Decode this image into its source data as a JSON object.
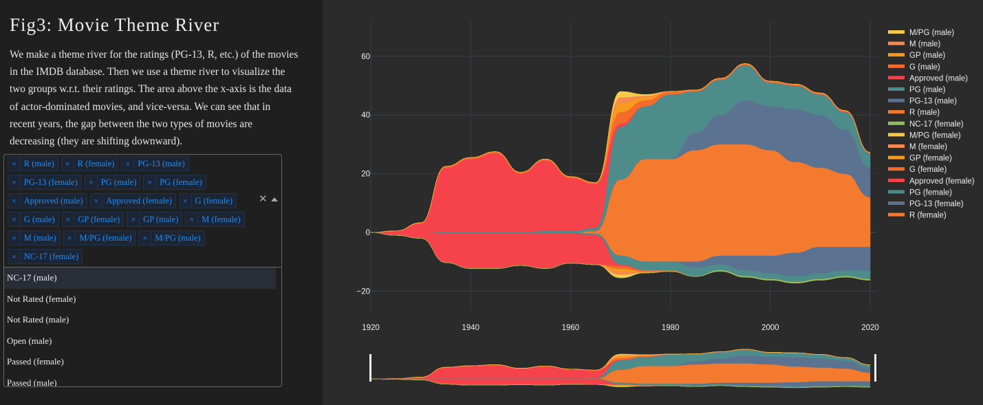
{
  "page": {
    "title": "Fig3: Movie Theme River",
    "description": "We make a theme river for the ratings (PG-13, R, etc.) of the movies in the IMDB database. Then we use a theme river to visualize the two groups w.r.t. their ratings. The area above the x-axis is the data of actor-dominated movies, and vice-versa. We can see that in recent years, the gap between the two types of movies are decreasing (they are shifting downward)."
  },
  "dropdown": {
    "selected": [
      "R (male)",
      "R (female)",
      "PG-13 (male)",
      "PG-13 (female)",
      "PG (male)",
      "PG (female)",
      "Approved (male)",
      "Approved (female)",
      "G (female)",
      "G (male)",
      "GP (female)",
      "GP (male)",
      "M (female)",
      "M (male)",
      "M/PG (female)",
      "M/PG (male)",
      "NC-17 (female)"
    ],
    "remove_glyph": "×",
    "clear_glyph": "✕",
    "options": [
      "NC-17 (male)",
      "Not Rated (female)",
      "Not Rated (male)",
      "Open (male)",
      "Passed (female)",
      "Passed (male)"
    ]
  },
  "chart_data": {
    "type": "area",
    "title": "",
    "xlabel": "",
    "ylabel": "",
    "x": [
      1920,
      1925,
      1930,
      1935,
      1940,
      1945,
      1950,
      1955,
      1960,
      1965,
      1970,
      1975,
      1980,
      1985,
      1990,
      1995,
      2000,
      2005,
      2010,
      2015,
      2020
    ],
    "xticks": [
      "1920",
      "1940",
      "1960",
      "1980",
      "2000",
      "2020"
    ],
    "yticks": [
      "60",
      "40",
      "20",
      "0",
      "−20"
    ],
    "ylim": [
      -25,
      68
    ],
    "xlim": [
      1920,
      2021
    ],
    "grid": true,
    "legend_position": "right",
    "rangeslider": true,
    "legend": [
      "M/PG (male)",
      "M (male)",
      "GP (male)",
      "G (male)",
      "Approved (male)",
      "PG (male)",
      "PG-13 (male)",
      "R (male)",
      "NC-17 (female)",
      "M/PG (female)",
      "M (female)",
      "GP (female)",
      "G (female)",
      "Approved (female)",
      "PG (female)",
      "PG-13 (female)",
      "R (female)"
    ],
    "series": [
      {
        "name": "R (male)",
        "color": "#f47a30",
        "values": [
          0,
          0,
          0,
          0,
          0,
          0,
          0,
          0,
          0,
          0.5,
          18,
          25,
          25,
          28,
          30,
          30,
          28,
          24,
          22,
          20,
          12
        ]
      },
      {
        "name": "PG-13 (male)",
        "color": "#5b7390",
        "values": [
          0,
          0,
          0,
          0,
          0,
          0,
          0,
          0,
          0,
          0,
          0,
          0,
          0,
          6,
          10,
          15,
          15,
          18,
          18,
          15,
          10
        ]
      },
      {
        "name": "PG (male)",
        "color": "#4e8c8c",
        "values": [
          0,
          0,
          0,
          0,
          0,
          0,
          0,
          0.5,
          0.5,
          1,
          18,
          18,
          22,
          14,
          12,
          12,
          8,
          8,
          7,
          6,
          5
        ]
      },
      {
        "name": "Approved (male)",
        "color": "#f5424b",
        "values": [
          0,
          0.5,
          3,
          22,
          25,
          27,
          20,
          24,
          18,
          15,
          1,
          0,
          0,
          0,
          0,
          0,
          0,
          0,
          0,
          0,
          0
        ]
      },
      {
        "name": "G (male)",
        "color": "#f56c2a",
        "values": [
          0,
          0,
          0.3,
          0.5,
          0.5,
          0.5,
          0.5,
          0.5,
          0.5,
          0.5,
          4,
          2,
          1,
          0.5,
          0.5,
          0.5,
          0.5,
          0.5,
          0.5,
          0.5,
          0.3
        ]
      },
      {
        "name": "GP (male)",
        "color": "#f79a1e",
        "values": [
          0,
          0,
          0,
          0,
          0,
          0,
          0,
          0,
          0,
          0,
          3,
          1,
          0,
          0,
          0,
          0,
          0,
          0,
          0,
          0,
          0
        ]
      },
      {
        "name": "M (male)",
        "color": "#f78a50",
        "values": [
          0,
          0,
          0,
          0,
          0,
          0,
          0,
          0,
          0,
          0,
          2,
          0.5,
          0,
          0,
          0,
          0,
          0,
          0,
          0,
          0,
          0
        ]
      },
      {
        "name": "M/PG (male)",
        "color": "#f7c94a",
        "values": [
          0,
          0,
          0,
          0,
          0,
          0,
          0,
          0,
          0,
          0,
          2,
          0.5,
          0,
          0,
          0,
          0,
          0,
          0,
          0,
          0,
          0
        ]
      },
      {
        "name": "R (female)",
        "color": "#f47a30",
        "values": [
          0,
          0,
          0,
          0,
          0,
          0,
          0,
          0,
          0,
          0.5,
          -8,
          -10,
          -10,
          -10,
          -8,
          -8,
          -8,
          -7,
          -5,
          -5,
          -5
        ]
      },
      {
        "name": "PG-13 (female)",
        "color": "#5b7390",
        "values": [
          0,
          0,
          0,
          0,
          0,
          0,
          0,
          0,
          0,
          0,
          0,
          0,
          0,
          -2,
          -3,
          -5,
          -6,
          -8,
          -9,
          -8,
          -8
        ]
      },
      {
        "name": "PG (female)",
        "color": "#4e8c8c",
        "values": [
          0,
          0,
          0,
          -0.3,
          -0.3,
          -0.3,
          -0.3,
          -0.3,
          -0.5,
          -0.5,
          -3,
          -3,
          -3,
          -3,
          -2,
          -2,
          -2,
          -2,
          -2,
          -2,
          -3
        ]
      },
      {
        "name": "Approved (female)",
        "color": "#f5424b",
        "values": [
          0,
          -1,
          -2,
          -10,
          -12,
          -12,
          -11,
          -12,
          -10,
          -10,
          -0.5,
          0,
          0,
          0,
          0,
          0,
          0,
          0,
          0,
          0,
          0
        ]
      },
      {
        "name": "G (female)",
        "color": "#f56c2a",
        "values": [
          0,
          0,
          0,
          0,
          0,
          0,
          0,
          0,
          0,
          0,
          -1,
          -0.5,
          -0.3,
          0,
          0,
          0,
          0,
          0,
          0,
          0,
          0
        ]
      },
      {
        "name": "GP (female)",
        "color": "#f79a1e",
        "values": [
          0,
          0,
          0,
          0,
          0,
          0,
          0,
          0,
          0,
          0,
          -1,
          -0.3,
          0,
          0,
          0,
          0,
          0,
          0,
          0,
          0,
          0
        ]
      },
      {
        "name": "M (female)",
        "color": "#f78a50",
        "values": [
          0,
          0,
          0,
          0,
          0,
          0,
          0,
          0,
          0,
          0,
          -1,
          0,
          0,
          0,
          0,
          0,
          0,
          0,
          0,
          0,
          0
        ]
      },
      {
        "name": "M/PG (female)",
        "color": "#f7c94a",
        "values": [
          0,
          0,
          0,
          0,
          0,
          0,
          0,
          0,
          0,
          0,
          -1,
          0,
          0,
          0,
          0,
          0,
          0,
          0,
          0,
          0,
          0
        ]
      },
      {
        "name": "NC-17 (female)",
        "color": "#8fbf5a",
        "values": [
          0,
          0,
          0,
          0,
          0,
          0,
          0,
          0,
          0,
          0,
          0,
          0,
          0,
          0,
          -0.3,
          -0.3,
          -0.3,
          -0.3,
          -0.3,
          -0.3,
          -0.3
        ]
      }
    ]
  }
}
